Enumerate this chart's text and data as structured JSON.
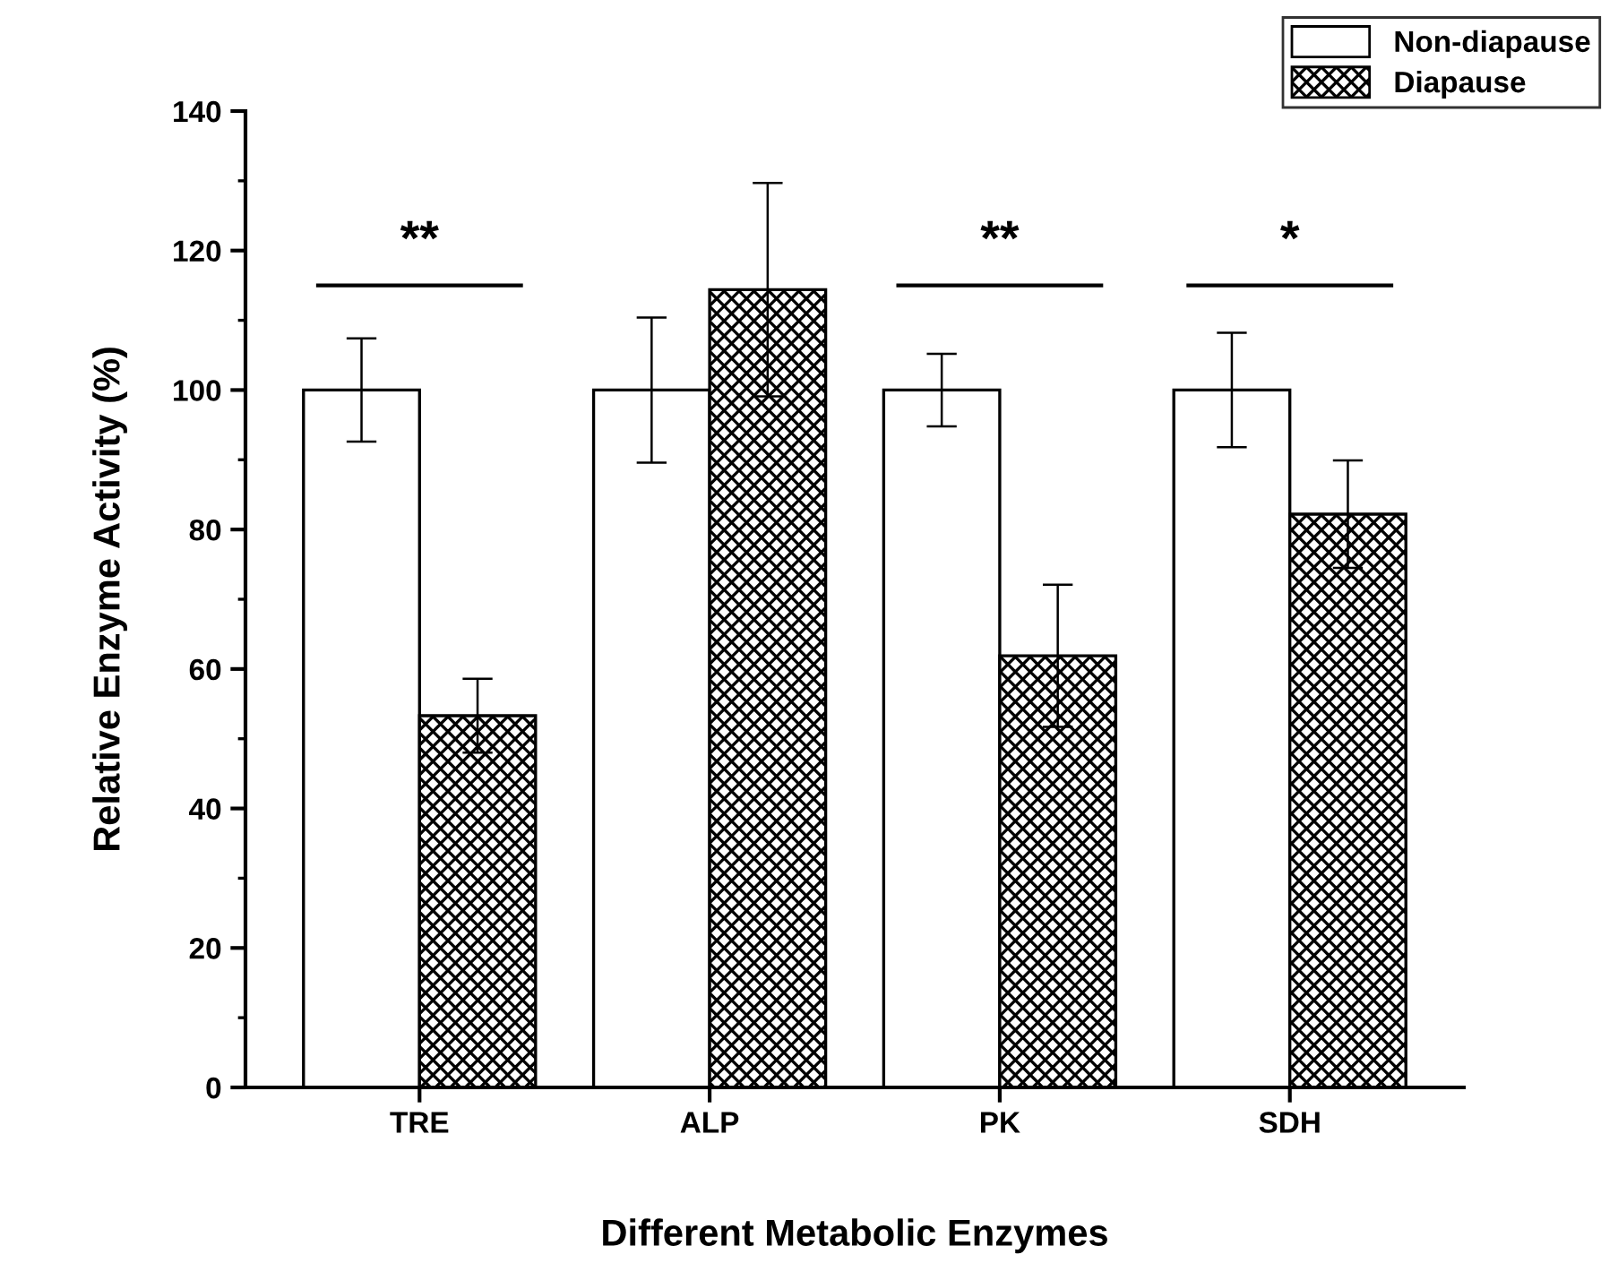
{
  "chart_data": {
    "type": "bar",
    "xlabel": "Different Metabolic Enzymes",
    "ylabel": "Relative Enzyme Activity (%)",
    "categories": [
      "TRE",
      "ALP",
      "PK",
      "SDH"
    ],
    "series": [
      {
        "name": "Non-diapause",
        "color": "#ffffff",
        "values": [
          100,
          100,
          100,
          100
        ],
        "errors": [
          7.4,
          10.4,
          5.2,
          8.2
        ]
      },
      {
        "name": "Diapause",
        "color": "#000000",
        "values": [
          53.3,
          114.4,
          61.9,
          82.2
        ],
        "errors": [
          5.3,
          15.3,
          10.2,
          7.7
        ]
      }
    ],
    "ylim": [
      0,
      140
    ],
    "yticks": [
      0,
      20,
      40,
      60,
      80,
      100,
      120,
      140
    ],
    "grid": false,
    "legend": "top right",
    "annotations": [
      "**",
      "**",
      "*"
    ]
  }
}
